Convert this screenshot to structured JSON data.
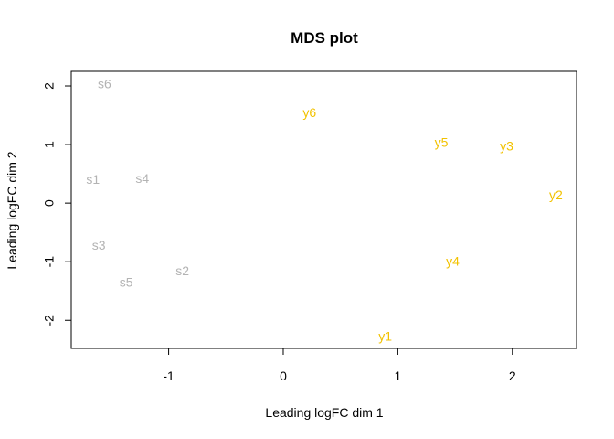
{
  "chart_data": {
    "type": "scatter",
    "title": "MDS plot",
    "xlabel": "Leading logFC dim 1",
    "ylabel": "Leading logFC dim 2",
    "xlim": [
      -1.85,
      2.56
    ],
    "ylim": [
      -2.48,
      2.25
    ],
    "x_ticks": [
      -1,
      0,
      1,
      2
    ],
    "x_tick_labels": [
      "-1",
      "0",
      "1",
      "2"
    ],
    "y_ticks": [
      -2,
      -1,
      0,
      1,
      2
    ],
    "y_tick_labels": [
      "-2",
      "-1",
      "0",
      "1",
      "2"
    ],
    "grid": false,
    "colors": {
      "s": "#b3b3b3",
      "y": "#f2c200"
    },
    "points": [
      {
        "label": "s6",
        "x": -1.56,
        "y": 2.02,
        "group": "s"
      },
      {
        "label": "s1",
        "x": -1.66,
        "y": 0.39,
        "group": "s"
      },
      {
        "label": "s4",
        "x": -1.23,
        "y": 0.4,
        "group": "s"
      },
      {
        "label": "s3",
        "x": -1.61,
        "y": -0.74,
        "group": "s"
      },
      {
        "label": "s5",
        "x": -1.37,
        "y": -1.37,
        "group": "s"
      },
      {
        "label": "s2",
        "x": -0.88,
        "y": -1.17,
        "group": "s"
      },
      {
        "label": "y6",
        "x": 0.23,
        "y": 1.53,
        "group": "y"
      },
      {
        "label": "y5",
        "x": 1.38,
        "y": 1.02,
        "group": "y"
      },
      {
        "label": "y3",
        "x": 1.95,
        "y": 0.96,
        "group": "y"
      },
      {
        "label": "y2",
        "x": 2.38,
        "y": 0.12,
        "group": "y"
      },
      {
        "label": "y4",
        "x": 1.48,
        "y": -1.01,
        "group": "y"
      },
      {
        "label": "y1",
        "x": 0.89,
        "y": -2.29,
        "group": "y"
      }
    ]
  }
}
